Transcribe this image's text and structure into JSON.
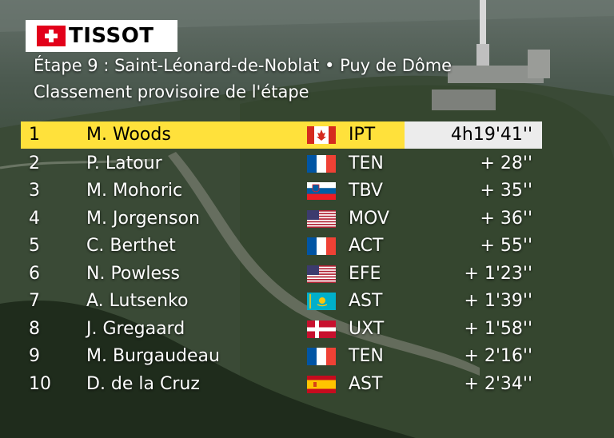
{
  "sponsor": {
    "logo_text": "TISSOT",
    "logo_color": "#e2001a"
  },
  "header": {
    "stage_line": "Étape 9 : Saint-Léonard-de-Noblat • Puy de Dôme",
    "subtitle": "Classement provisoire de l'étape"
  },
  "colors": {
    "leader_bg": "#ffe13b",
    "leader_time_bg": "#ececec"
  },
  "standings": [
    {
      "rank": "1",
      "rider": "M. Woods",
      "flag": "canada-flag-icon",
      "team": "IPT",
      "gap": "4h19'41''"
    },
    {
      "rank": "2",
      "rider": "P. Latour",
      "flag": "france-flag-icon",
      "team": "TEN",
      "gap": "+  28''"
    },
    {
      "rank": "3",
      "rider": "M. Mohoric",
      "flag": "slovenia-flag-icon",
      "team": "TBV",
      "gap": "+  35''"
    },
    {
      "rank": "4",
      "rider": "M. Jorgenson",
      "flag": "usa-flag-icon",
      "team": "MOV",
      "gap": "+  36''"
    },
    {
      "rank": "5",
      "rider": "C. Berthet",
      "flag": "france-flag-icon",
      "team": "ACT",
      "gap": "+  55''"
    },
    {
      "rank": "6",
      "rider": "N. Powless",
      "flag": "usa-flag-icon",
      "team": "EFE",
      "gap": "+  1'23''"
    },
    {
      "rank": "7",
      "rider": "A. Lutsenko",
      "flag": "kazakhstan-flag-icon",
      "team": "AST",
      "gap": "+  1'39''"
    },
    {
      "rank": "8",
      "rider": "J. Gregaard",
      "flag": "denmark-flag-icon",
      "team": "UXT",
      "gap": "+  1'58''"
    },
    {
      "rank": "9",
      "rider": "M. Burgaudeau",
      "flag": "france-flag-icon",
      "team": "TEN",
      "gap": "+  2'16''"
    },
    {
      "rank": "10",
      "rider": "D. de la Cruz",
      "flag": "spain-flag-icon",
      "team": "AST",
      "gap": "+  2'34''"
    }
  ]
}
